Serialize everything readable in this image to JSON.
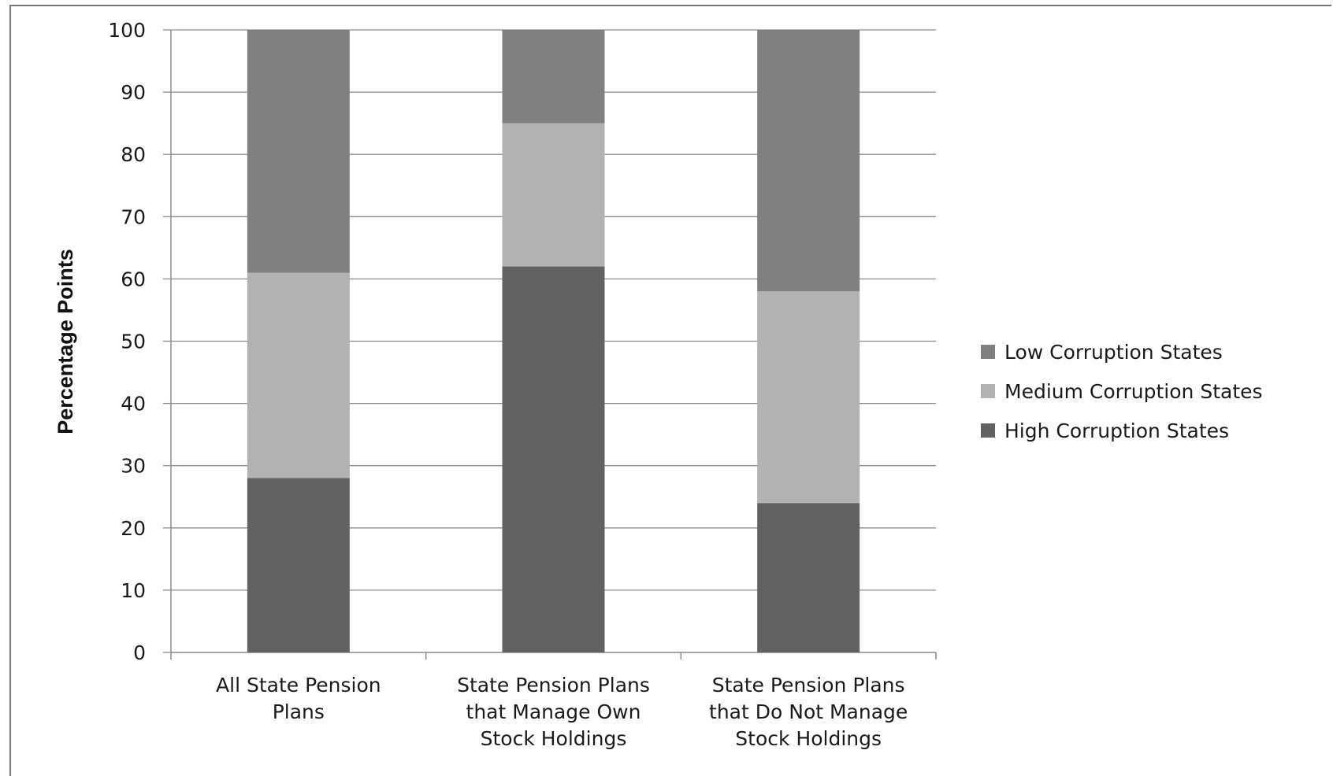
{
  "chart_data": {
    "type": "bar",
    "stacked": true,
    "title": "",
    "xlabel": "",
    "ylabel": "Percentage Points",
    "ylim": [
      0,
      100
    ],
    "yticks": [
      0,
      10,
      20,
      30,
      40,
      50,
      60,
      70,
      80,
      90,
      100
    ],
    "grid": true,
    "legend_position": "right",
    "categories": [
      [
        "All State Pension",
        "Plans"
      ],
      [
        "State Pension Plans",
        "that Manage Own",
        "Stock Holdings"
      ],
      [
        "State Pension Plans",
        "that Do Not Manage",
        "Stock Holdings"
      ]
    ],
    "series": [
      {
        "name": "High Corruption States",
        "color": "#626262",
        "values": [
          28,
          62,
          24
        ]
      },
      {
        "name": "Medium Corruption States",
        "color": "#b2b2b2",
        "values": [
          33,
          23,
          34
        ]
      },
      {
        "name": "Low Corruption States",
        "color": "#808080",
        "values": [
          39,
          15,
          42
        ]
      }
    ],
    "legend_order": [
      "Low Corruption States",
      "Medium Corruption States",
      "High Corruption States"
    ]
  }
}
